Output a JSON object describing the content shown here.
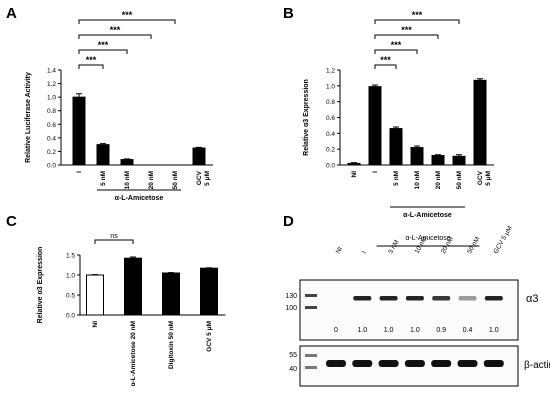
{
  "panels": {
    "A": "A",
    "B": "B",
    "C": "C",
    "D": "D"
  },
  "sig": {
    "three": "***",
    "ns": "ns"
  },
  "chart_data": [
    {
      "panel": "A",
      "type": "bar",
      "ylabel": "Relative Luciferase Activity",
      "categories": [
        "I",
        "5 nM",
        "10 nM",
        "20 nM",
        "50 nM",
        "GCV\n5 μM"
      ],
      "values": [
        1.0,
        0.3,
        0.08,
        0.0,
        0.0,
        0.25
      ],
      "errors": [
        0.05,
        0.015,
        0.01,
        0.0,
        0.0,
        0.01
      ],
      "ylim": [
        0,
        1.4
      ],
      "yticks": [
        "0.0",
        "0.2",
        "0.4",
        "0.6",
        "0.8",
        "1.0",
        "1.2",
        "1.4"
      ],
      "group_label": "α-L-Amicetose",
      "group_span": [
        1,
        4
      ],
      "fills": [
        "#000000",
        "#000000",
        "#000000",
        "#000000",
        "#000000",
        "#000000"
      ],
      "brackets": [
        {
          "from": 0,
          "to": 1,
          "label": "***"
        },
        {
          "from": 0,
          "to": 2,
          "label": "***"
        },
        {
          "from": 0,
          "to": 3,
          "label": "***"
        },
        {
          "from": 0,
          "to": 4,
          "label": "***"
        }
      ]
    },
    {
      "panel": "B",
      "type": "bar",
      "ylabel": "Relative α3 Expression",
      "categories": [
        "NI",
        "I",
        "5 nM",
        "10 nM",
        "20 nM",
        "50 nM",
        "GCV\n5 μM"
      ],
      "values": [
        0.02,
        0.99,
        0.46,
        0.22,
        0.12,
        0.11,
        1.07
      ],
      "errors": [
        0.01,
        0.02,
        0.02,
        0.02,
        0.01,
        0.02,
        0.02
      ],
      "ylim": [
        0,
        1.2
      ],
      "yticks": [
        "0.0",
        "0.2",
        "0.4",
        "0.6",
        "0.8",
        "1.0",
        "1.2"
      ],
      "group_label": "α-L-Amicetose",
      "group_span": [
        2,
        5
      ],
      "fills": [
        "#000000",
        "#000000",
        "#000000",
        "#000000",
        "#000000",
        "#000000",
        "#000000"
      ],
      "brackets": [
        {
          "from": 1,
          "to": 2,
          "label": "***"
        },
        {
          "from": 1,
          "to": 3,
          "label": "***"
        },
        {
          "from": 1,
          "to": 4,
          "label": "***"
        },
        {
          "from": 1,
          "to": 5,
          "label": "***"
        }
      ]
    },
    {
      "panel": "C",
      "type": "bar",
      "ylabel": "Relative α3 Expression",
      "categories": [
        "NI",
        "α-L-Amicetose 20 nM",
        "Digitoxin 50 nM",
        "GCV 5 μM"
      ],
      "values": [
        1.0,
        1.42,
        1.05,
        1.17
      ],
      "errors": [
        0.01,
        0.03,
        0.01,
        0.01
      ],
      "ylim": [
        0,
        1.5
      ],
      "yticks": [
        "0.0",
        "0.5",
        "1.0",
        "1.5"
      ],
      "fills": [
        "#ffffff",
        "#000000",
        "#000000",
        "#000000"
      ],
      "brackets": [
        {
          "from": 0,
          "to": 1,
          "label": "ns"
        }
      ]
    },
    {
      "panel": "D",
      "type": "table",
      "group_label": "α-L-Amicetose",
      "lanes": [
        "NI",
        "I",
        "5 nM",
        "10 nM",
        "20 nM",
        "50 nM",
        "GCV 5 μM"
      ],
      "top_blot": {
        "target": "α3",
        "ladder": [
          "130",
          "100"
        ],
        "intensity": [
          0.0,
          1.0,
          1.0,
          1.0,
          0.9,
          0.4,
          1.0
        ],
        "quant_labels": [
          "0",
          "1.0",
          "1.0",
          "1.0",
          "0.9",
          "0.4",
          "1.0"
        ]
      },
      "bottom_blot": {
        "target": "β-actin",
        "ladder": [
          "55",
          "40"
        ]
      }
    }
  ]
}
